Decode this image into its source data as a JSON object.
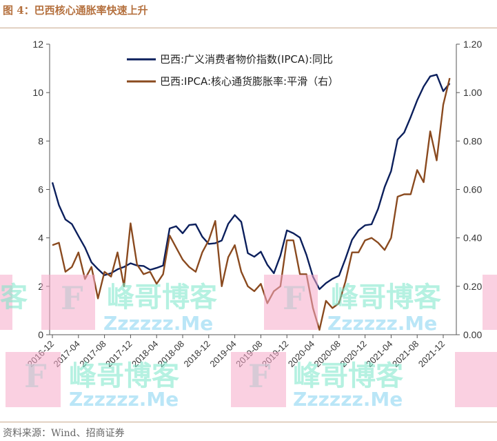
{
  "figure": {
    "title": "图 4：巴西核心通胀率快速上升",
    "source": "资料来源：Wind、招商证券"
  },
  "watermark": {
    "main": "峰哥博客",
    "sub": "Zzzzzz.Me",
    "letter": "F",
    "partial": "客"
  },
  "chart_data": {
    "type": "line",
    "title": "",
    "x_tick_labels": [
      "2016-12",
      "2017-04",
      "2017-08",
      "2017-12",
      "2018-04",
      "2018-08",
      "2018-12",
      "2019-04",
      "2019-08",
      "2019-12",
      "2020-04",
      "2020-08",
      "2020-12",
      "2021-04",
      "2021-08",
      "2021-12"
    ],
    "x_start": "2016-12",
    "ylim_left": [
      0,
      12
    ],
    "yticks_left": [
      "0",
      "2",
      "4",
      "6",
      "8",
      "10",
      "12"
    ],
    "ylim_right": [
      0,
      1.2
    ],
    "yticks_right": [
      "0.00",
      "0.20",
      "0.40",
      "0.60",
      "0.80",
      "1.00",
      "1.20"
    ],
    "grid": false,
    "legend_position": "top-right",
    "series": [
      {
        "name": "巴西:广义消费者物价指数(IPCA):同比",
        "axis": "left",
        "color": "#0b1f5c",
        "values": [
          6.29,
          5.35,
          4.76,
          4.57,
          4.08,
          3.6,
          2.99,
          2.71,
          2.46,
          2.54,
          2.7,
          2.8,
          2.95,
          2.86,
          2.84,
          2.68,
          2.76,
          2.86,
          4.39,
          4.48,
          4.19,
          4.53,
          4.56,
          4.05,
          3.75,
          3.78,
          3.89,
          4.58,
          4.94,
          4.66,
          3.37,
          3.22,
          3.43,
          2.89,
          2.54,
          3.27,
          4.31,
          4.19,
          4.01,
          3.3,
          2.4,
          1.88,
          2.13,
          2.31,
          2.44,
          3.14,
          3.92,
          4.31,
          4.52,
          4.56,
          5.2,
          6.1,
          6.76,
          8.06,
          8.35,
          8.99,
          9.68,
          10.25,
          10.67,
          10.74,
          10.06,
          10.38
        ]
      },
      {
        "name": "巴西:IPCA:核心通货膨胀率:平滑（右）",
        "axis": "right",
        "color": "#8a4a1f",
        "values": [
          0.37,
          0.38,
          0.26,
          0.28,
          0.34,
          0.23,
          0.28,
          0.15,
          0.26,
          0.24,
          0.34,
          0.2,
          0.46,
          0.29,
          0.25,
          0.26,
          0.21,
          0.25,
          0.41,
          0.36,
          0.31,
          0.28,
          0.26,
          0.34,
          0.39,
          0.47,
          0.2,
          0.32,
          0.37,
          0.26,
          0.2,
          0.18,
          0.21,
          0.13,
          0.18,
          0.2,
          0.39,
          0.39,
          0.25,
          0.25,
          0.11,
          0.02,
          0.14,
          0.11,
          0.13,
          0.22,
          0.34,
          0.34,
          0.39,
          0.4,
          0.38,
          0.35,
          0.4,
          0.57,
          0.58,
          0.58,
          0.68,
          0.63,
          0.84,
          0.72,
          0.95,
          1.06
        ]
      }
    ]
  }
}
